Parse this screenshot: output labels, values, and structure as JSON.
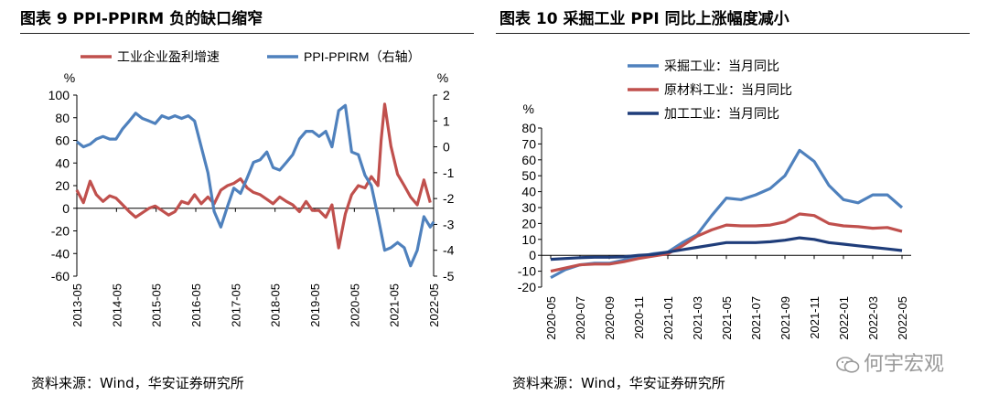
{
  "chart_data": [
    {
      "type": "line",
      "title": "图表 9 PPI-PPIRM 负的缺口缩窄",
      "source": "资料来源：Wind，华安证券研究所",
      "y_unit_left": "%",
      "y_unit_right": "%",
      "ylim_left": [
        -60,
        100
      ],
      "ylim_right": [
        -5,
        2
      ],
      "yticks_left": [
        "100",
        "80",
        "60",
        "40",
        "20",
        "0",
        "-20",
        "-40",
        "-60"
      ],
      "yticks_right": [
        "2",
        "1",
        "0",
        "-1",
        "-2",
        "-3",
        "-4",
        "-5"
      ],
      "xticks": [
        "2013-05",
        "2014-05",
        "2015-05",
        "2016-05",
        "2017-05",
        "2018-05",
        "2019-05",
        "2020-05",
        "2021-05",
        "2022-05"
      ],
      "x_range": [
        2013.333,
        2022.417
      ],
      "series": [
        {
          "name": "工业企业盈利增速",
          "axis": "left",
          "color": "#c0504d",
          "x": [
            2013.33,
            2013.5,
            2013.67,
            2013.83,
            2014.0,
            2014.17,
            2014.33,
            2014.5,
            2014.67,
            2014.83,
            2015.0,
            2015.17,
            2015.33,
            2015.5,
            2015.67,
            2015.83,
            2016.0,
            2016.17,
            2016.33,
            2016.5,
            2016.67,
            2016.83,
            2017.0,
            2017.17,
            2017.33,
            2017.5,
            2017.67,
            2017.83,
            2018.0,
            2018.17,
            2018.33,
            2018.5,
            2018.67,
            2018.83,
            2019.0,
            2019.17,
            2019.33,
            2019.5,
            2019.67,
            2019.83,
            2020.0,
            2020.17,
            2020.33,
            2020.5,
            2020.67,
            2020.83,
            2021.0,
            2021.08,
            2021.17,
            2021.33,
            2021.5,
            2021.67,
            2021.83,
            2022.0,
            2022.17,
            2022.33
          ],
          "values": [
            16,
            5,
            24,
            12,
            6,
            11,
            9,
            3,
            -3,
            -8,
            -4,
            0,
            2,
            -2,
            -6,
            -3,
            6,
            4,
            12,
            4,
            10,
            4,
            16,
            20,
            22,
            26,
            18,
            14,
            12,
            8,
            4,
            10,
            6,
            3,
            -3,
            6,
            -2,
            -2,
            -8,
            3,
            -35,
            -5,
            12,
            20,
            18,
            28,
            20,
            60,
            92,
            55,
            30,
            20,
            10,
            3,
            25,
            5
          ]
        },
        {
          "name": "PPI-PPIRM（右轴）",
          "axis": "right",
          "color": "#4f81bd",
          "x": [
            2013.33,
            2013.5,
            2013.67,
            2013.83,
            2014.0,
            2014.17,
            2014.33,
            2014.5,
            2014.67,
            2014.83,
            2015.0,
            2015.17,
            2015.33,
            2015.5,
            2015.67,
            2015.83,
            2016.0,
            2016.17,
            2016.33,
            2016.5,
            2016.67,
            2016.83,
            2017.0,
            2017.17,
            2017.33,
            2017.5,
            2017.67,
            2017.83,
            2018.0,
            2018.17,
            2018.33,
            2018.5,
            2018.67,
            2018.83,
            2019.0,
            2019.17,
            2019.33,
            2019.5,
            2019.67,
            2019.83,
            2020.0,
            2020.17,
            2020.33,
            2020.5,
            2020.67,
            2020.83,
            2021.0,
            2021.17,
            2021.33,
            2021.5,
            2021.67,
            2021.83,
            2022.0,
            2022.17,
            2022.33,
            2022.42
          ],
          "values": [
            0.2,
            0.0,
            0.1,
            0.3,
            0.4,
            0.3,
            0.3,
            0.7,
            1.0,
            1.3,
            1.1,
            1.0,
            0.9,
            1.2,
            1.1,
            1.2,
            1.1,
            1.2,
            1.0,
            0.0,
            -1.0,
            -2.5,
            -3.1,
            -2.3,
            -1.6,
            -1.8,
            -1.2,
            -0.6,
            -0.5,
            -0.2,
            -0.8,
            -0.9,
            -0.6,
            -0.3,
            0.3,
            0.6,
            0.6,
            0.4,
            0.6,
            0.0,
            1.4,
            1.6,
            -0.2,
            -0.3,
            -1.1,
            -1.5,
            -2.7,
            -4.0,
            -3.9,
            -3.7,
            -3.9,
            -4.6,
            -4.0,
            -2.7,
            -3.1,
            -2.9
          ]
        }
      ]
    },
    {
      "type": "line",
      "title": "图表 10 采掘工业 PPI 同比上涨幅度减小",
      "source": "资料来源：Wind，华安证券研究所",
      "y_unit": "%",
      "ylim": [
        -20,
        80
      ],
      "yticks": [
        "80",
        "70",
        "60",
        "50",
        "40",
        "30",
        "20",
        "10",
        "0",
        "-10",
        "-20"
      ],
      "categories": [
        "2020-05",
        "2020-06",
        "2020-07",
        "2020-08",
        "2020-09",
        "2020-10",
        "2020-11",
        "2020-12",
        "2021-01",
        "2021-02",
        "2021-03",
        "2021-04",
        "2021-05",
        "2021-06",
        "2021-07",
        "2021-08",
        "2021-09",
        "2021-10",
        "2021-11",
        "2021-12",
        "2022-01",
        "2022-02",
        "2022-03",
        "2022-04",
        "2022-05"
      ],
      "xticks": [
        "2020-05",
        "2020-07",
        "2020-09",
        "2020-11",
        "2021-01",
        "2021-03",
        "2021-05",
        "2021-07",
        "2021-09",
        "2021-11",
        "2022-01",
        "2022-03",
        "2022-05"
      ],
      "series": [
        {
          "name": "采掘工业：当月同比",
          "color": "#4f81bd",
          "values": [
            -14,
            -9,
            -6,
            -5,
            -5,
            -3,
            -1,
            1,
            2,
            8,
            13,
            25,
            36,
            35,
            38,
            42,
            50,
            66,
            59,
            44,
            35,
            33,
            38,
            38,
            30
          ]
        },
        {
          "name": "原材料工业：当月同比",
          "color": "#c0504d",
          "values": [
            -10,
            -8,
            -6,
            -5.5,
            -5.5,
            -4,
            -2,
            -0.5,
            1,
            6,
            12,
            16,
            19,
            18.5,
            18.5,
            19,
            21,
            26,
            25,
            20,
            18.5,
            18,
            17,
            17.5,
            15
          ]
        },
        {
          "name": "加工工业：当月同比",
          "color": "#1f3d7a",
          "values": [
            -2.5,
            -2,
            -1.5,
            -1.2,
            -1.2,
            -1,
            0,
            0.5,
            2,
            3.5,
            5,
            6.5,
            8,
            8,
            8,
            8.5,
            9.5,
            11,
            10,
            8,
            7,
            6,
            5,
            4,
            3
          ]
        }
      ]
    }
  ],
  "watermark": "何宇宏观"
}
